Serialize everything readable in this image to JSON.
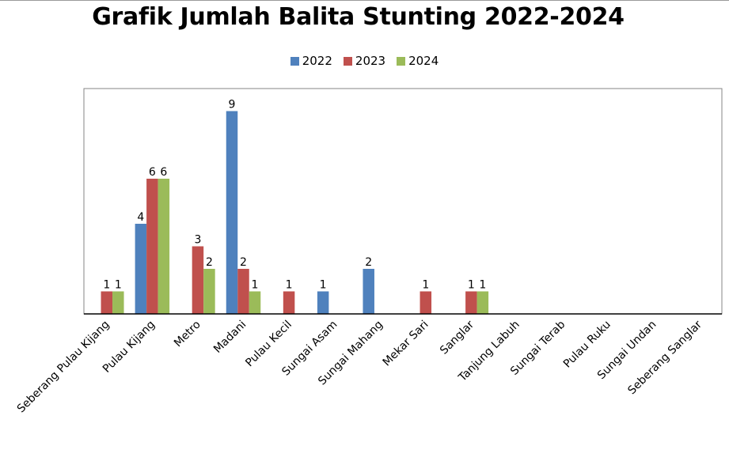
{
  "chart_data": {
    "type": "bar",
    "title": "Grafik Jumlah Balita Stunting 2022-2024",
    "categories": [
      "Seberang Pulau Kijang",
      "Pulau Kijang",
      "Metro",
      "Madani",
      "Pulau Kecil",
      "Sungai Asam",
      "Sungai Mahang",
      "Mekar Sari",
      "Sanglar",
      "Tanjung Labuh",
      "Sungai Terab",
      "Pulau Ruku",
      "Sungai Undan",
      "Seberang Sanglar"
    ],
    "series": [
      {
        "name": "2022",
        "color": "#4f81bd",
        "values": [
          0,
          4,
          0,
          9,
          0,
          1,
          2,
          0,
          0,
          0,
          0,
          0,
          0,
          0
        ]
      },
      {
        "name": "2023",
        "color": "#c0504d",
        "values": [
          1,
          6,
          3,
          2,
          1,
          0,
          0,
          1,
          1,
          0,
          0,
          0,
          0,
          0
        ]
      },
      {
        "name": "2024",
        "color": "#9bbb59",
        "values": [
          1,
          6,
          2,
          1,
          0,
          0,
          0,
          0,
          1,
          0,
          0,
          0,
          0,
          0
        ]
      }
    ],
    "ylim": [
      0,
      10
    ],
    "legend_position": "top",
    "grid": false,
    "data_labels": true
  }
}
